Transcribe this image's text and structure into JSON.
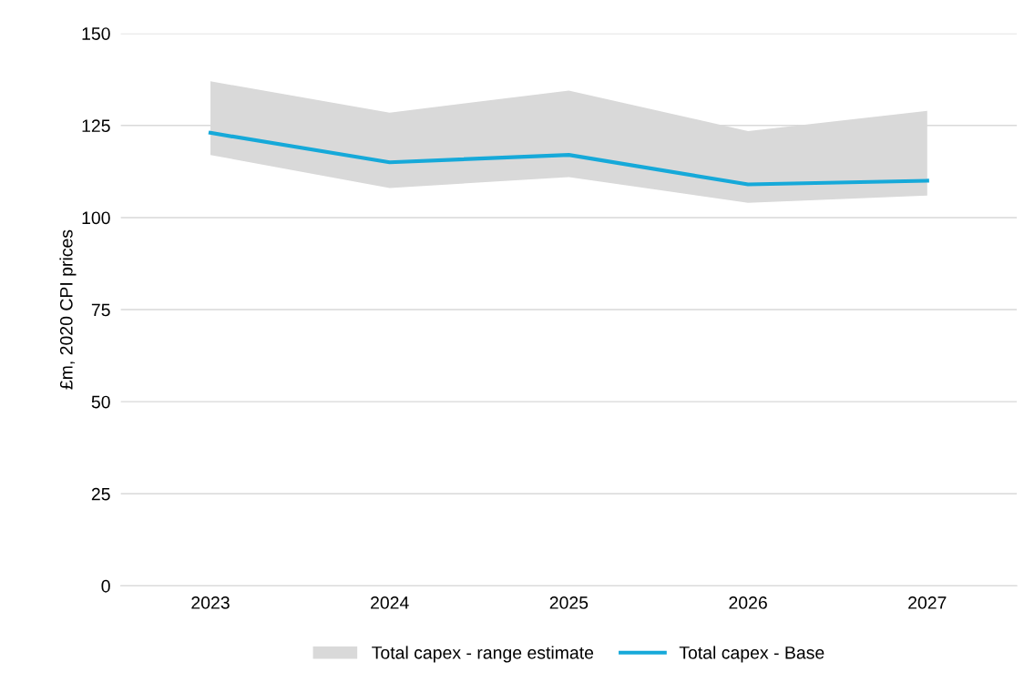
{
  "chart_data": {
    "type": "line",
    "ylabel": "£m, 2020 CPI prices",
    "categories": [
      "2023",
      "2024",
      "2025",
      "2026",
      "2027"
    ],
    "series": [
      {
        "name": "Total capex - Base",
        "color": "#16a9d9",
        "values": [
          123,
          115,
          117,
          109,
          110
        ],
        "lower": [
          117,
          108,
          111,
          104,
          106
        ],
        "upper": [
          137,
          128.5,
          134.5,
          123.5,
          129
        ]
      }
    ],
    "annotations": [
      "Total capex - range estimate"
    ],
    "ylim": [
      0,
      150
    ],
    "yticks": [
      0,
      25,
      50,
      75,
      100,
      125,
      150
    ],
    "grid": "y",
    "legend": "bottom"
  }
}
